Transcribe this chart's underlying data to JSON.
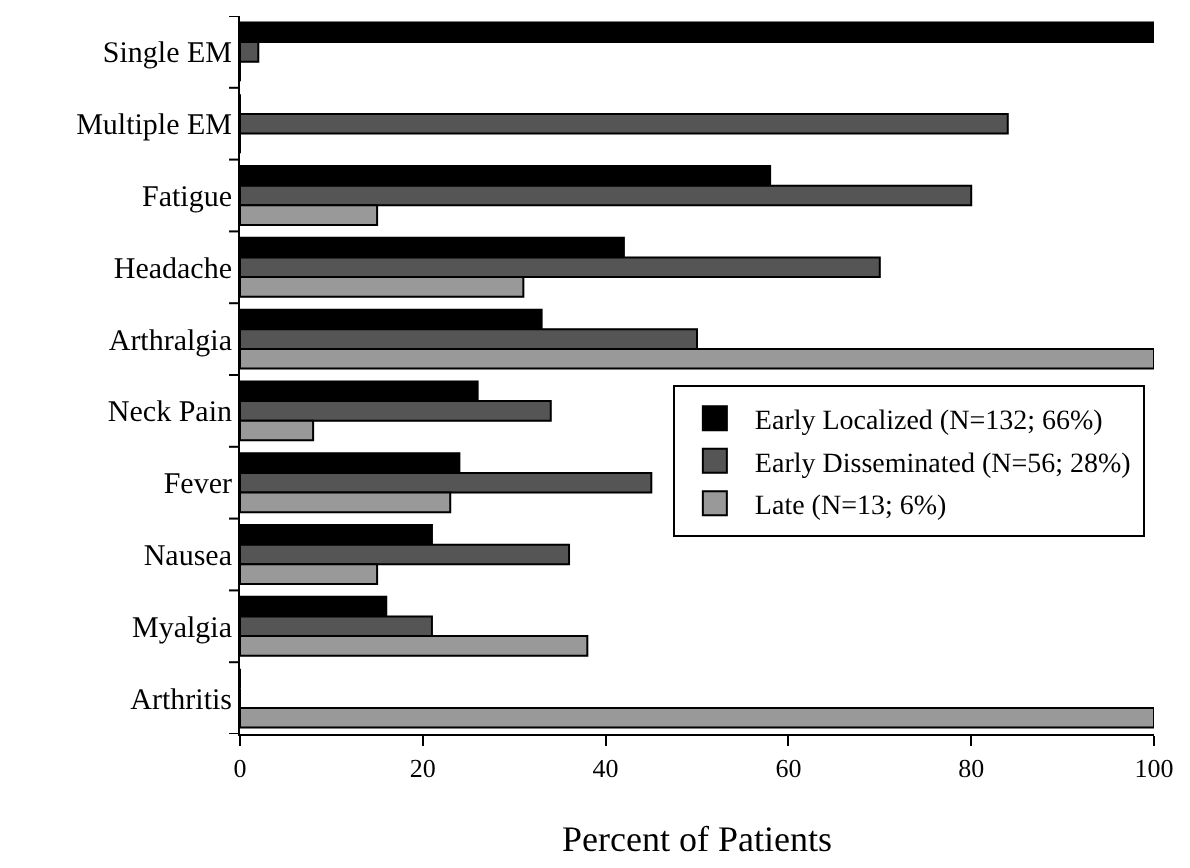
{
  "chart_data": {
    "type": "bar",
    "orientation": "horizontal",
    "xlabel": "Percent of Patients",
    "categories": [
      "Single EM",
      "Multiple EM",
      "Fatigue",
      "Headache",
      "Arthralgia",
      "Neck Pain",
      "Fever",
      "Nausea",
      "Myalgia",
      "Arthritis"
    ],
    "series": [
      {
        "name": "Early Localized (N=132; 66%)",
        "color": "#000000",
        "values": [
          100,
          0,
          58,
          42,
          33,
          26,
          24,
          21,
          16,
          0
        ]
      },
      {
        "name": "Early Disseminated (N=56; 28%)",
        "color": "#555555",
        "values": [
          2,
          84,
          80,
          70,
          50,
          34,
          45,
          36,
          21,
          0
        ]
      },
      {
        "name": "Late (N=13; 6%)",
        "color": "#999999",
        "values": [
          0,
          0,
          15,
          31,
          100,
          8,
          23,
          15,
          38,
          100
        ]
      }
    ],
    "xlim": [
      0,
      100
    ],
    "xticks": [
      0,
      20,
      40,
      60,
      80,
      100
    ],
    "grid": false,
    "legend": "right"
  }
}
